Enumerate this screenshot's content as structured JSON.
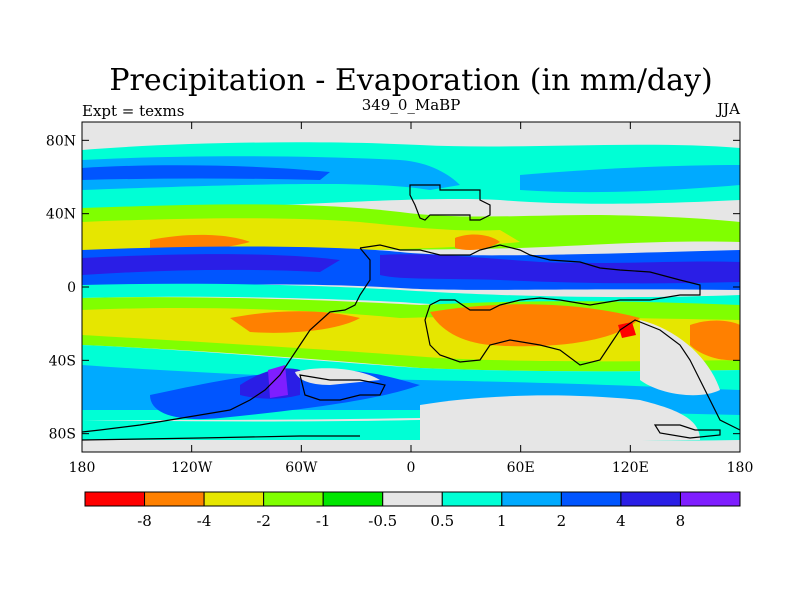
{
  "chart_data": {
    "type": "heatmap",
    "title": "Precipitation - Evaporation (in mm/day)",
    "subtitle_left": "Expt = texms",
    "subtitle_center": "349_0_MaBP",
    "subtitle_right": "JJA",
    "x_ticks": [
      "180",
      "120W",
      "60W",
      "0",
      "60E",
      "120E",
      "180"
    ],
    "y_ticks": [
      "80N",
      "40N",
      "0",
      "40S",
      "80S"
    ],
    "x_range_degrees_longitude": [
      -180,
      180
    ],
    "y_range_degrees_latitude": [
      -90,
      90
    ],
    "colorbar": {
      "labels": [
        "-8",
        "-4",
        "-2",
        "-1",
        "-0.5",
        "0.5",
        "1",
        "2",
        "4",
        "8"
      ],
      "colors": [
        "#ff0000",
        "#ff8000",
        "#e6e600",
        "#80ff00",
        "#00e600",
        "#e6e6e6",
        "#00ffd5",
        "#00aaff",
        "#0055ff",
        "#2a1ee6",
        "#7f1eff"
      ]
    }
  }
}
